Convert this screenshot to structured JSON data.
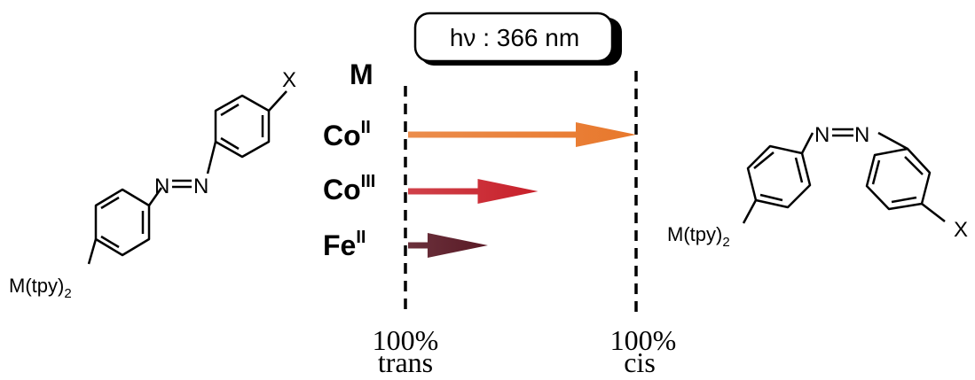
{
  "badge": {
    "text": "hν : 366 nm"
  },
  "header": {
    "metal_label": "M"
  },
  "rows": [
    {
      "metal": "Co",
      "oxidation": "II",
      "fraction_cis": 1.0,
      "color": "#E8782C"
    },
    {
      "metal": "Co",
      "oxidation": "III",
      "fraction_cis": 0.57,
      "color": "#C8202A"
    },
    {
      "metal": "Fe",
      "oxidation": "II",
      "fraction_cis": 0.35,
      "color": "#5A1A26"
    }
  ],
  "axis": {
    "left": {
      "pct": "100%",
      "label": "trans"
    },
    "right": {
      "pct": "100%",
      "label": "cis"
    }
  },
  "molecules": {
    "trans": {
      "substituent": "X",
      "azo_left": "N",
      "azo_right": "N",
      "metal_group": "M(tpy)",
      "metal_group_sub": "2"
    },
    "cis": {
      "substituent": "X",
      "azo_left": "N",
      "azo_right": "N",
      "metal_group": "M(tpy)",
      "metal_group_sub": "2"
    }
  }
}
